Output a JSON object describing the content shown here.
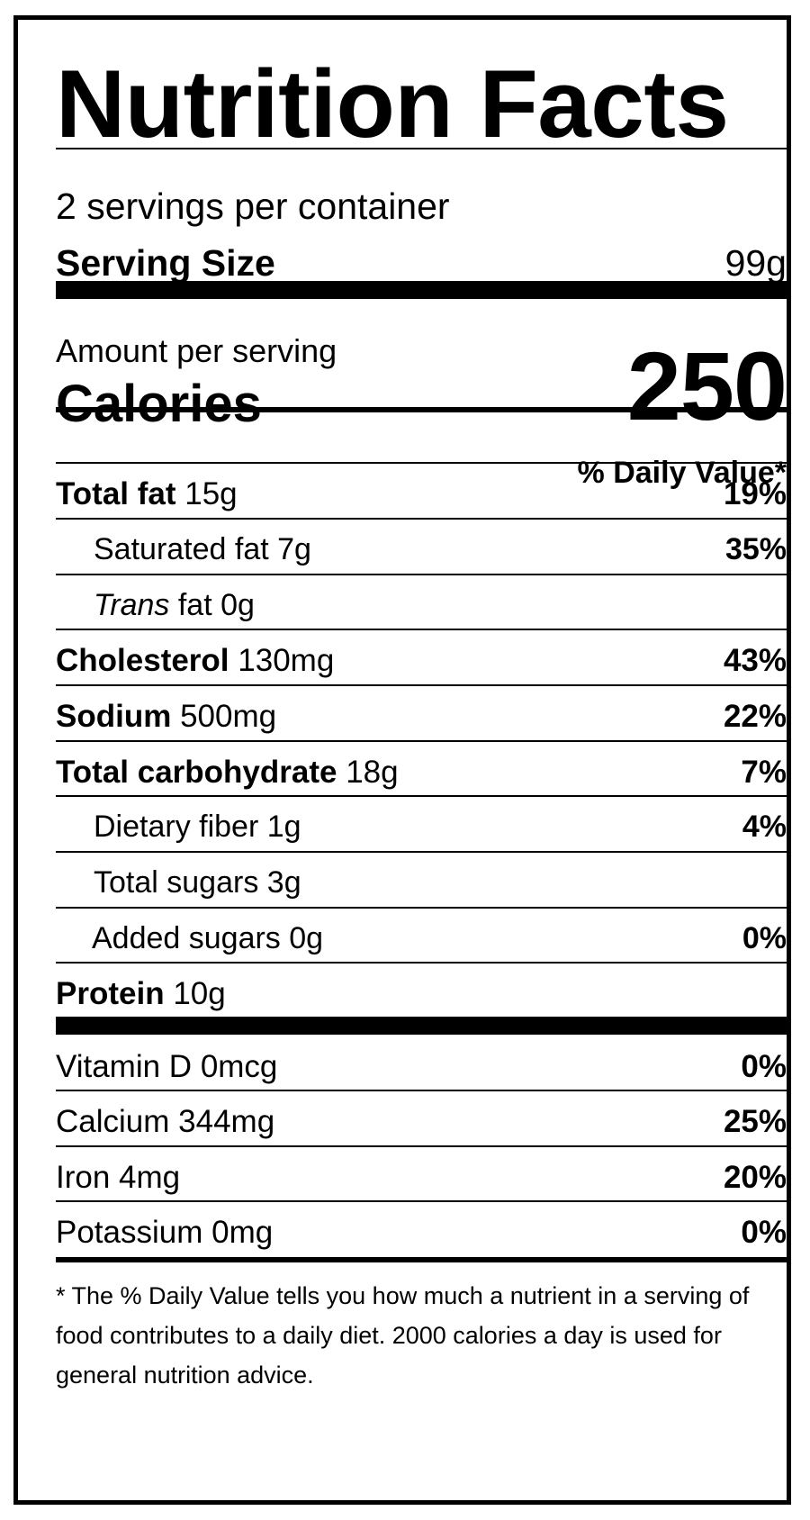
{
  "title": "Nutrition Facts",
  "servings_per_container": "2 servings per container",
  "serving_size": {
    "label": "Serving Size",
    "value": "99g"
  },
  "amount_per_serving": "Amount per serving",
  "calories": {
    "label": "Calories",
    "value": "250"
  },
  "daily_value_header": "% Daily Value*",
  "nutrients": [
    {
      "name": "Total fat",
      "amount": "15g",
      "dv": "19%"
    },
    {
      "name": "Saturated fat",
      "amount": "7g",
      "dv": "35%"
    },
    {
      "name": "Trans",
      "suffix": "fat",
      "amount": "0g",
      "dv": ""
    },
    {
      "name": "Cholesterol",
      "amount": "130mg",
      "dv": "43%"
    },
    {
      "name": "Sodium",
      "amount": "500mg",
      "dv": "22%"
    },
    {
      "name": "Total carbohydrate",
      "amount": "18g",
      "dv": "7%"
    },
    {
      "name": "Dietary fiber",
      "amount": "1g",
      "dv": "4%"
    },
    {
      "name": "Total sugars",
      "amount": "3g",
      "dv": ""
    },
    {
      "name": "Added sugars",
      "amount": "0g",
      "dv": "0%"
    },
    {
      "name": "Protein",
      "amount": "10g",
      "dv": ""
    }
  ],
  "vitamins": [
    {
      "name": "Vitamin D",
      "amount": "0mcg",
      "dv": "0%"
    },
    {
      "name": "Calcium",
      "amount": "344mg",
      "dv": "25%"
    },
    {
      "name": "Iron",
      "amount": "4mg",
      "dv": "20%"
    },
    {
      "name": "Potassium",
      "amount": "0mg",
      "dv": "0%"
    }
  ],
  "footnote": "* The % Daily Value tells you how much a nutrient in a serving of food contributes to a daily diet. 2000 calories a day is used for general nutrition advice."
}
